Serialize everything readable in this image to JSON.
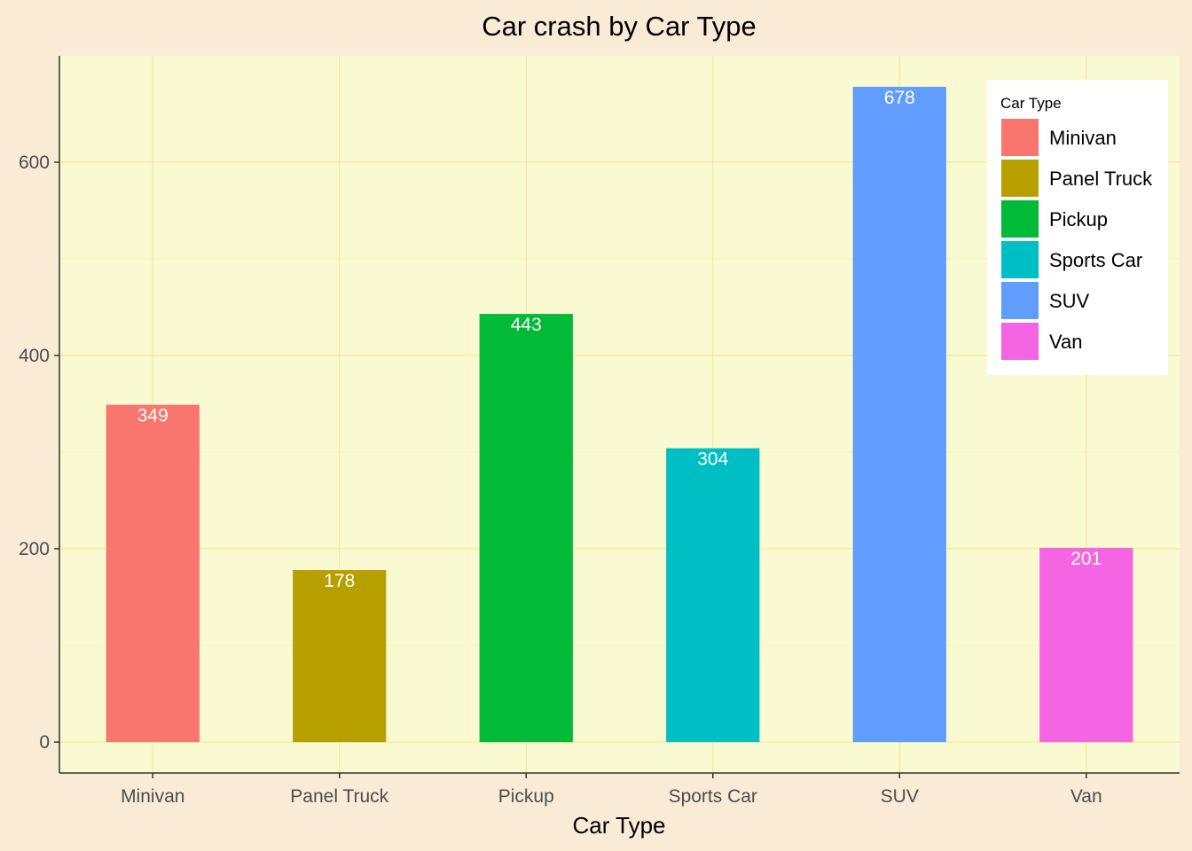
{
  "chart_data": {
    "type": "bar",
    "title": "Car crash by Car Type",
    "xlabel": "Car Type",
    "ylabel": "",
    "categories": [
      "Minivan",
      "Panel Truck",
      "Pickup",
      "Sports Car",
      "SUV",
      "Van"
    ],
    "values": [
      349,
      178,
      443,
      304,
      678,
      201
    ],
    "colors": [
      "#F8766D",
      "#B79F00",
      "#00BA38",
      "#00BFC4",
      "#619CFF",
      "#F564E3"
    ],
    "ylim": [
      -32,
      710
    ],
    "yticks": [
      0,
      200,
      400,
      600
    ],
    "ytick_labels": [
      "0",
      "200",
      "400",
      "600"
    ],
    "grid": true,
    "legend": {
      "title": "Car Type",
      "placement": "top-right",
      "entries": [
        "Minivan",
        "Panel Truck",
        "Pickup",
        "Sports Car",
        "SUV",
        "Van"
      ]
    }
  },
  "theme": {
    "page_background": "#FAEBD7",
    "panel_background": "#FAFAD2",
    "grid_color": "#F0E68C",
    "axis_color": "#333333",
    "tick_label_color": "#4D4D4D",
    "data_label_color": "#FFFFFF"
  }
}
